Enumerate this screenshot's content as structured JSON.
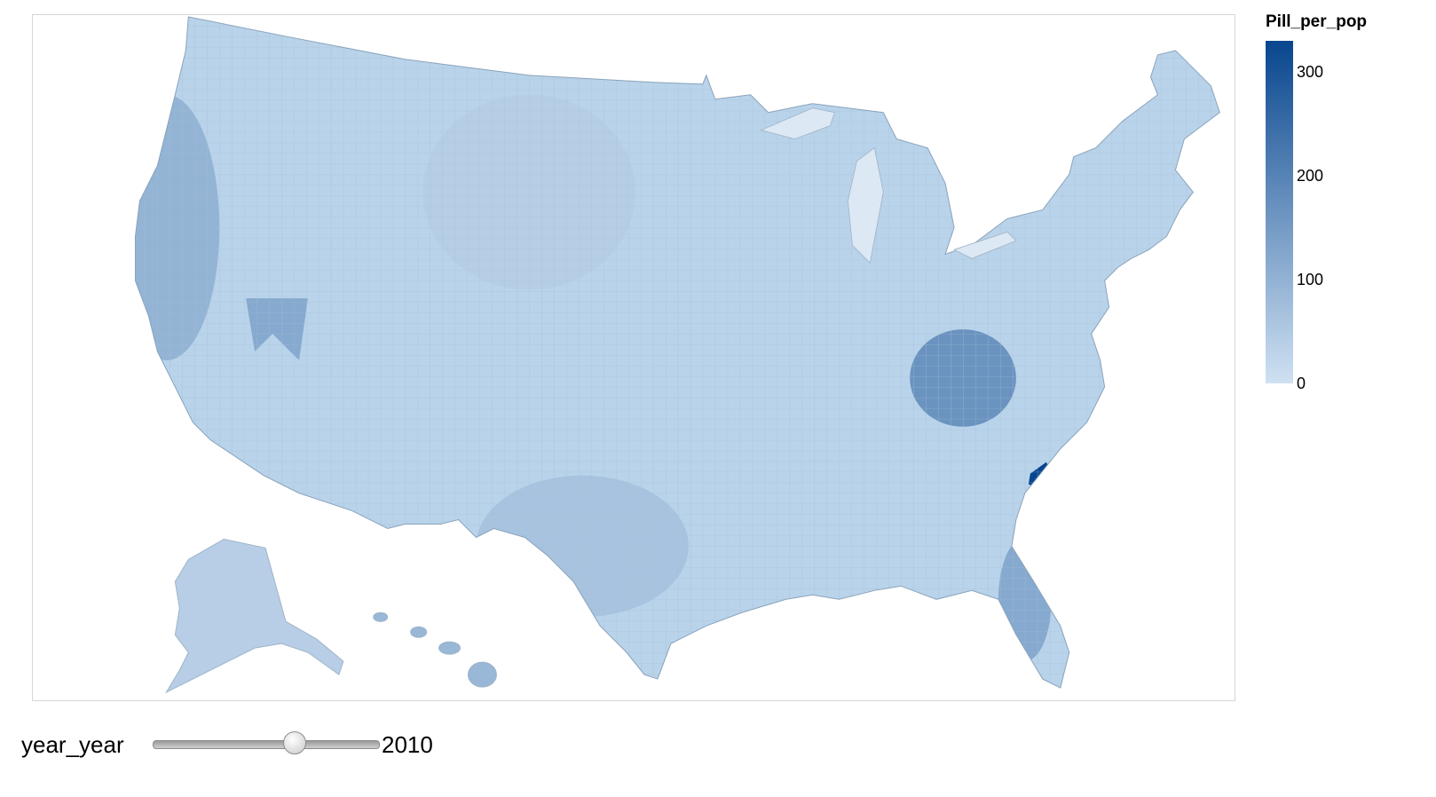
{
  "map": {
    "value_field": "Pill_per_pop",
    "value_range": [
      0,
      330
    ],
    "color_low": "#cfe1f2",
    "color_high": "#08468e",
    "border_color": "#9fb4c8",
    "outline_color": "#8aa3bb",
    "hotspot_value": 330,
    "state_levels": [
      {
        "region": "west-coast",
        "level": 120
      },
      {
        "region": "nevada",
        "level": 150
      },
      {
        "region": "appalachia",
        "level": 210
      },
      {
        "region": "florida",
        "level": 150
      },
      {
        "region": "great-plains",
        "level": 45
      },
      {
        "region": "texas",
        "level": 75
      }
    ]
  },
  "legend": {
    "title": "Pill_per_pop",
    "ticks": [
      {
        "value": 300,
        "label": "300"
      },
      {
        "value": 200,
        "label": "200"
      },
      {
        "value": 100,
        "label": "100"
      },
      {
        "value": 0,
        "label": "0"
      }
    ]
  },
  "control": {
    "label": "year_year",
    "value": "2010",
    "slider_fraction": 0.645
  }
}
